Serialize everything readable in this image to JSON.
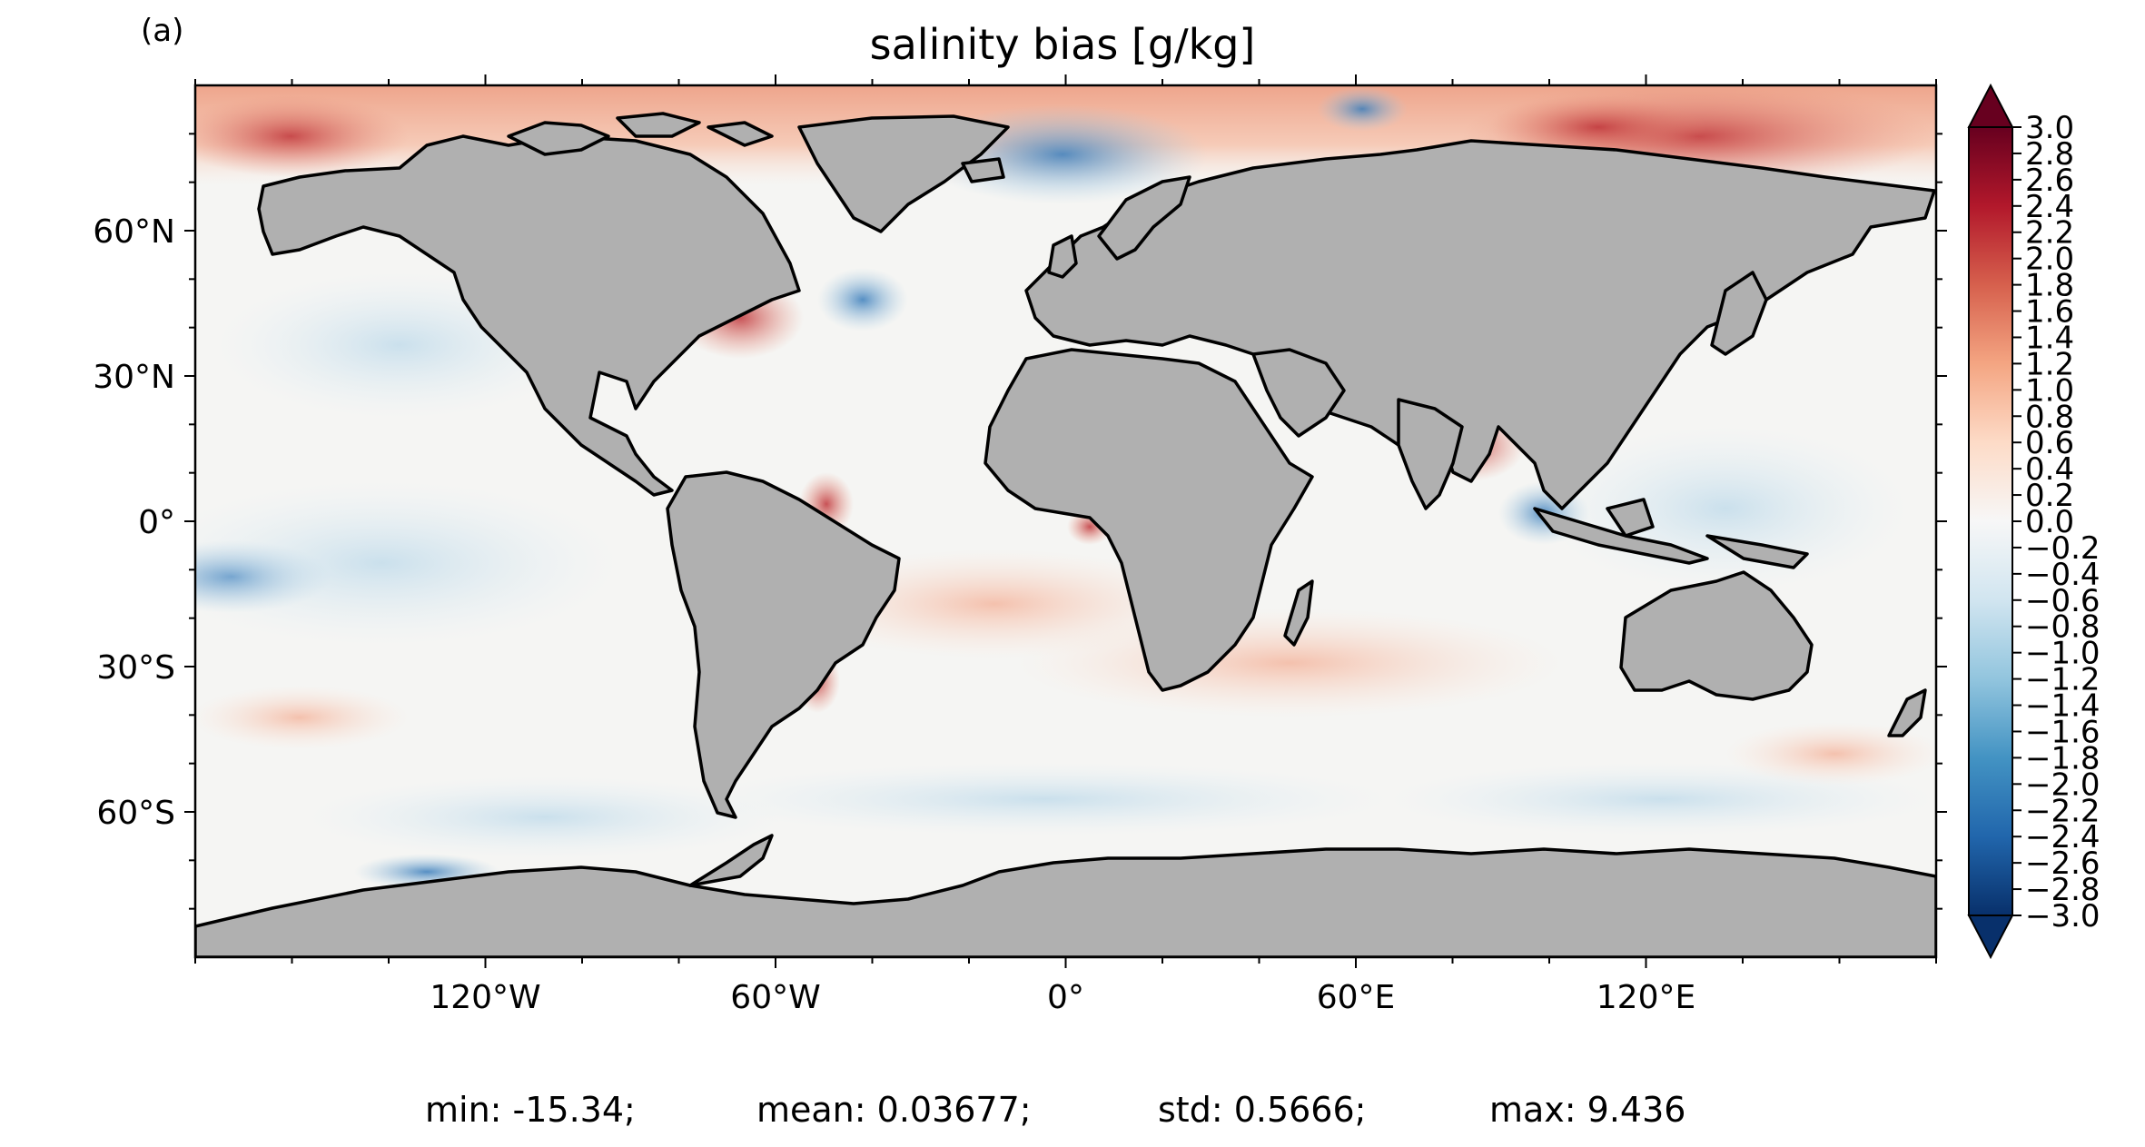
{
  "panel_label": "(a)",
  "title": "salinity bias [g/kg]",
  "lat_ticks": [
    "60°N",
    "30°N",
    "0°",
    "30°S",
    "60°S"
  ],
  "lon_ticks": [
    "120°W",
    "60°W",
    "0°",
    "60°E",
    "120°E"
  ],
  "colorbar": {
    "min": -3.0,
    "max": 3.0,
    "extend": "both",
    "colormap": "RdBu_r",
    "colors": [
      "#08306b",
      "#2166ac",
      "#4393c3",
      "#92c5de",
      "#d1e5f0",
      "#f7f7f7",
      "#fddbc7",
      "#f4a582",
      "#d6604d",
      "#b2182b",
      "#67001f"
    ],
    "tick_labels": [
      "3.0",
      "2.8",
      "2.6",
      "2.4",
      "2.2",
      "2.0",
      "1.8",
      "1.6",
      "1.4",
      "1.2",
      "1.0",
      "0.8",
      "0.6",
      "0.4",
      "0.2",
      "0.0",
      "−0.2",
      "−0.4",
      "−0.6",
      "−0.8",
      "−1.0",
      "−1.2",
      "−1.4",
      "−1.6",
      "−1.8",
      "−2.0",
      "−2.2",
      "−2.4",
      "−2.6",
      "−2.8",
      "−3.0"
    ]
  },
  "colors": {
    "land": "#b0b0b0",
    "coast": "#000000",
    "ocean_base": "#f5f5f3"
  },
  "stats": {
    "min": "min: -15.34;",
    "mean": "mean: 0.03677;",
    "std": "std: 0.5666;",
    "max": "max: 9.436"
  }
}
